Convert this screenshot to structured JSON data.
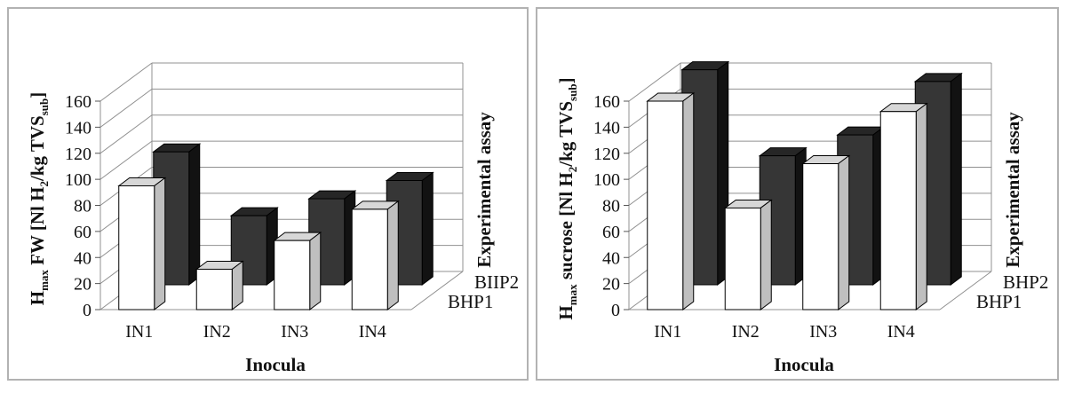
{
  "figure": {
    "background": "#ffffff",
    "panel_border_color": "#b2b2b2",
    "grid_color": "#909090",
    "bar_outline_color": "#000000"
  },
  "chart_data": [
    {
      "type": "bar",
      "projection": "3d-column",
      "ylabel_parts": [
        {
          "t": "H"
        },
        {
          "t": "max",
          "sub": true
        },
        {
          "t": " FW [Nl H"
        },
        {
          "t": "2",
          "sub": true
        },
        {
          "t": "/kg TVS",
          "sub": false
        },
        {
          "t": "sub",
          "sub": true
        },
        {
          "t": "]"
        }
      ],
      "xlabel": "Inocula",
      "depth_axis_label": "Experimental assay",
      "categories": [
        "IN1",
        "IN2",
        "IN3",
        "IN4"
      ],
      "series": [
        {
          "name": "BHP1",
          "row": "front",
          "values": [
            95,
            31,
            53,
            77
          ],
          "colors": {
            "front": "#ffffff",
            "side": "#bfbfbf",
            "top": "#d7d7d7"
          }
        },
        {
          "name": "BIIP2",
          "row": "back",
          "values": [
            102,
            53,
            66,
            80
          ],
          "colors": {
            "front": "#363636",
            "side": "#121212",
            "top": "#262626"
          }
        }
      ],
      "ylim": [
        0,
        160
      ],
      "ytick_step": 20,
      "grid": true,
      "legend_position": "depth-axis-bottom-right"
    },
    {
      "type": "bar",
      "projection": "3d-column",
      "ylabel_parts": [
        {
          "t": "H"
        },
        {
          "t": "max",
          "sub": true
        },
        {
          "t": " sucrose [Nl H"
        },
        {
          "t": "2",
          "sub": true
        },
        {
          "t": "/kg TVS",
          "sub": false
        },
        {
          "t": "sub",
          "sub": true
        },
        {
          "t": "]"
        }
      ],
      "xlabel": "Inocula",
      "depth_axis_label": "Experimental assay",
      "categories": [
        "IN1",
        "IN2",
        "IN3",
        "IN4"
      ],
      "series": [
        {
          "name": "BHP1",
          "row": "front",
          "values": [
            160,
            78,
            112,
            152
          ],
          "colors": {
            "front": "#ffffff",
            "side": "#bfbfbf",
            "top": "#d7d7d7"
          }
        },
        {
          "name": "BHP2",
          "row": "back",
          "values": [
            165,
            99,
            115,
            156
          ],
          "colors": {
            "front": "#363636",
            "side": "#121212",
            "top": "#262626"
          }
        }
      ],
      "ylim": [
        0,
        160
      ],
      "ytick_step": 20,
      "grid": true,
      "legend_position": "depth-axis-bottom-right"
    }
  ]
}
